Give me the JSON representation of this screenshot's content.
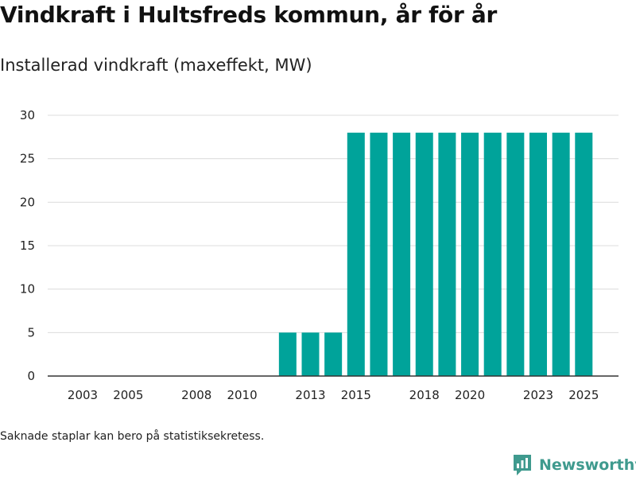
{
  "title": "Vindkraft i Hultsfreds kommun, år för år",
  "subtitle": "Installerad vindkraft (maxeffekt, MW)",
  "footnote": "Saknade staplar kan bero på statistiksekretess.",
  "brand": {
    "name": "Newsworthy",
    "icon": "newsworthy-logo-icon"
  },
  "colors": {
    "bar": "#00a39a",
    "grid": "#dcdcdc",
    "axis": "#333333",
    "brand": "#3f9a8e"
  },
  "chart_data": {
    "type": "bar",
    "categories": [
      "2003",
      "2004",
      "2005",
      "2006",
      "2007",
      "2008",
      "2009",
      "2010",
      "2011",
      "2012",
      "2013",
      "2014",
      "2015",
      "2016",
      "2017",
      "2018",
      "2019",
      "2020",
      "2021",
      "2022",
      "2023",
      "2024",
      "2025"
    ],
    "values": [
      null,
      null,
      null,
      null,
      null,
      null,
      null,
      null,
      null,
      5,
      5,
      5,
      28,
      28,
      28,
      28,
      28,
      28,
      28,
      28,
      28,
      28,
      28
    ],
    "x_tick_labels": [
      "2003",
      "2005",
      "2008",
      "2010",
      "2013",
      "2015",
      "2018",
      "2020",
      "2023",
      "2025"
    ],
    "y_ticks": [
      0,
      5,
      10,
      15,
      20,
      25,
      30
    ],
    "ylim": [
      0,
      30
    ],
    "xlabel": "",
    "ylabel": "",
    "grid": true
  }
}
